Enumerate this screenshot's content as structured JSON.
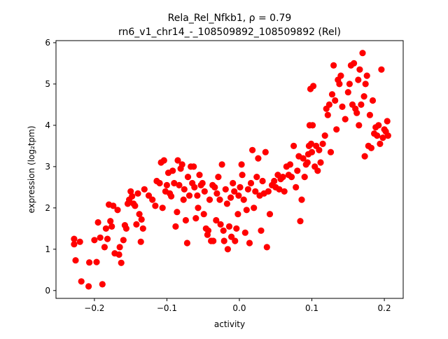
{
  "chart_data": {
    "type": "scatter",
    "title_line1": "Rela_Rel_Nfkb1, ρ = 0.79",
    "title_line2": "rn6_v1_chr14_-_108509892_108509892 (Rel)",
    "xlabel": "activity",
    "ylabel": "expression (log₂tpm)",
    "xlim": [
      -0.253,
      0.226
    ],
    "ylim": [
      -0.19,
      6.05
    ],
    "xticks": [
      -0.2,
      -0.1,
      0.0,
      0.1,
      0.2
    ],
    "xtick_labels": [
      "−0.2",
      "−0.1",
      "0.0",
      "0.1",
      "0.2"
    ],
    "yticks": [
      0,
      1,
      2,
      3,
      4,
      5,
      6
    ],
    "ytick_labels": [
      "0",
      "1",
      "2",
      "3",
      "4",
      "5",
      "6"
    ],
    "grid": false,
    "legend": "none",
    "marker_color": "#ff0000",
    "points": [
      [
        -0.228,
        1.25
      ],
      [
        -0.228,
        1.12
      ],
      [
        -0.226,
        0.73
      ],
      [
        -0.22,
        1.18
      ],
      [
        -0.218,
        0.22
      ],
      [
        -0.208,
        0.1
      ],
      [
        -0.207,
        0.68
      ],
      [
        -0.2,
        1.22
      ],
      [
        -0.197,
        0.69
      ],
      [
        -0.195,
        1.65
      ],
      [
        -0.192,
        1.28
      ],
      [
        -0.189,
        0.15
      ],
      [
        -0.186,
        1.05
      ],
      [
        -0.184,
        1.5
      ],
      [
        -0.182,
        1.25
      ],
      [
        -0.18,
        2.08
      ],
      [
        -0.178,
        1.68
      ],
      [
        -0.176,
        1.55
      ],
      [
        -0.174,
        2.05
      ],
      [
        -0.172,
        0.9
      ],
      [
        -0.168,
        1.95
      ],
      [
        -0.166,
        0.87
      ],
      [
        -0.165,
        1.05
      ],
      [
        -0.163,
        0.67
      ],
      [
        -0.16,
        1.22
      ],
      [
        -0.158,
        1.58
      ],
      [
        -0.156,
        1.5
      ],
      [
        -0.154,
        2.1
      ],
      [
        -0.152,
        2.2
      ],
      [
        -0.15,
        2.4
      ],
      [
        -0.148,
        2.28
      ],
      [
        -0.146,
        2.1
      ],
      [
        -0.144,
        2.05
      ],
      [
        -0.142,
        1.6
      ],
      [
        -0.14,
        2.35
      ],
      [
        -0.138,
        1.85
      ],
      [
        -0.136,
        1.18
      ],
      [
        -0.135,
        1.72
      ],
      [
        -0.133,
        1.5
      ],
      [
        -0.131,
        2.45
      ],
      [
        -0.125,
        2.3
      ],
      [
        -0.12,
        2.2
      ],
      [
        -0.116,
        2.05
      ],
      [
        -0.114,
        2.65
      ],
      [
        -0.11,
        2.6
      ],
      [
        -0.108,
        3.1
      ],
      [
        -0.106,
        2.0
      ],
      [
        -0.104,
        3.15
      ],
      [
        -0.102,
        2.4
      ],
      [
        -0.1,
        2.55
      ],
      [
        -0.098,
        2.85
      ],
      [
        -0.096,
        2.35
      ],
      [
        -0.094,
        2.28
      ],
      [
        -0.092,
        2.9
      ],
      [
        -0.09,
        2.6
      ],
      [
        -0.088,
        1.55
      ],
      [
        -0.086,
        1.9
      ],
      [
        -0.085,
        3.15
      ],
      [
        -0.083,
        2.55
      ],
      [
        -0.081,
        2.95
      ],
      [
        -0.079,
        3.05
      ],
      [
        -0.077,
        2.2
      ],
      [
        -0.076,
        2.45
      ],
      [
        -0.074,
        1.7
      ],
      [
        -0.072,
        1.15
      ],
      [
        -0.071,
        2.75
      ],
      [
        -0.069,
        2.3
      ],
      [
        -0.067,
        3.0
      ],
      [
        -0.065,
        2.6
      ],
      [
        -0.063,
        3.0
      ],
      [
        -0.062,
        2.5
      ],
      [
        -0.06,
        1.75
      ],
      [
        -0.058,
        2.3
      ],
      [
        -0.057,
        2.0
      ],
      [
        -0.055,
        2.8
      ],
      [
        -0.053,
        2.55
      ],
      [
        -0.051,
        2.6
      ],
      [
        -0.049,
        1.85
      ],
      [
        -0.048,
        2.4
      ],
      [
        -0.046,
        1.5
      ],
      [
        -0.044,
        1.35
      ],
      [
        -0.043,
        1.45
      ],
      [
        -0.041,
        2.2
      ],
      [
        -0.039,
        1.2
      ],
      [
        -0.037,
        2.55
      ],
      [
        -0.036,
        1.2
      ],
      [
        -0.034,
        2.5
      ],
      [
        -0.032,
        1.7
      ],
      [
        -0.031,
        2.35
      ],
      [
        -0.029,
        2.75
      ],
      [
        -0.027,
        2.2
      ],
      [
        -0.026,
        1.6
      ],
      [
        -0.024,
        3.05
      ],
      [
        -0.022,
        1.45
      ],
      [
        -0.021,
        1.2
      ],
      [
        -0.019,
        2.45
      ],
      [
        -0.017,
        2.1
      ],
      [
        -0.016,
        1.0
      ],
      [
        -0.014,
        1.55
      ],
      [
        -0.012,
        2.25
      ],
      [
        -0.011,
        1.3
      ],
      [
        -0.009,
        2.6
      ],
      [
        -0.007,
        2.4
      ],
      [
        -0.006,
        1.2
      ],
      [
        -0.004,
        1.5
      ],
      [
        -0.002,
        1.85
      ],
      [
        -0.001,
        2.3
      ],
      [
        0.001,
        2.5
      ],
      [
        0.003,
        3.05
      ],
      [
        0.004,
        2.8
      ],
      [
        0.006,
        2.2
      ],
      [
        0.008,
        1.4
      ],
      [
        0.01,
        1.95
      ],
      [
        0.012,
        2.45
      ],
      [
        0.014,
        1.15
      ],
      [
        0.016,
        2.6
      ],
      [
        0.018,
        3.4
      ],
      [
        0.02,
        2.0
      ],
      [
        0.022,
        2.4
      ],
      [
        0.024,
        2.75
      ],
      [
        0.026,
        3.2
      ],
      [
        0.028,
        2.3
      ],
      [
        0.03,
        1.45
      ],
      [
        0.032,
        2.65
      ],
      [
        0.034,
        2.35
      ],
      [
        0.036,
        3.35
      ],
      [
        0.038,
        1.05
      ],
      [
        0.04,
        2.4
      ],
      [
        0.042,
        1.85
      ],
      [
        0.045,
        2.55
      ],
      [
        0.048,
        2.65
      ],
      [
        0.05,
        2.5
      ],
      [
        0.053,
        2.8
      ],
      [
        0.055,
        2.45
      ],
      [
        0.057,
        2.7
      ],
      [
        0.06,
        2.75
      ],
      [
        0.062,
        2.4
      ],
      [
        0.065,
        3.0
      ],
      [
        0.068,
        2.8
      ],
      [
        0.07,
        3.05
      ],
      [
        0.072,
        2.75
      ],
      [
        0.075,
        3.5
      ],
      [
        0.078,
        2.5
      ],
      [
        0.08,
        2.9
      ],
      [
        0.082,
        3.25
      ],
      [
        0.084,
        1.68
      ],
      [
        0.086,
        2.2
      ],
      [
        0.088,
        3.2
      ],
      [
        0.09,
        2.75
      ],
      [
        0.092,
        3.05
      ],
      [
        0.094,
        3.1
      ],
      [
        0.095,
        3.3
      ],
      [
        0.096,
        3.5
      ],
      [
        0.097,
        4.0
      ],
      [
        0.098,
        4.88
      ],
      [
        0.099,
        3.55
      ],
      [
        0.1,
        3.35
      ],
      [
        0.101,
        4.0
      ],
      [
        0.102,
        4.95
      ],
      [
        0.104,
        3.0
      ],
      [
        0.106,
        3.5
      ],
      [
        0.108,
        2.9
      ],
      [
        0.11,
        3.4
      ],
      [
        0.112,
        3.1
      ],
      [
        0.115,
        3.55
      ],
      [
        0.118,
        3.75
      ],
      [
        0.12,
        4.4
      ],
      [
        0.122,
        4.25
      ],
      [
        0.124,
        4.5
      ],
      [
        0.126,
        3.35
      ],
      [
        0.128,
        4.75
      ],
      [
        0.13,
        5.45
      ],
      [
        0.132,
        4.6
      ],
      [
        0.134,
        3.9
      ],
      [
        0.136,
        5.1
      ],
      [
        0.138,
        5.0
      ],
      [
        0.14,
        5.2
      ],
      [
        0.142,
        4.45
      ],
      [
        0.146,
        4.15
      ],
      [
        0.15,
        4.8
      ],
      [
        0.152,
        5.0
      ],
      [
        0.154,
        5.45
      ],
      [
        0.156,
        4.5
      ],
      [
        0.158,
        5.5
      ],
      [
        0.16,
        4.4
      ],
      [
        0.162,
        4.3
      ],
      [
        0.164,
        5.1
      ],
      [
        0.165,
        4.0
      ],
      [
        0.166,
        5.35
      ],
      [
        0.168,
        4.5
      ],
      [
        0.17,
        5.75
      ],
      [
        0.172,
        4.7
      ],
      [
        0.173,
        3.25
      ],
      [
        0.174,
        5.0
      ],
      [
        0.176,
        5.2
      ],
      [
        0.178,
        3.5
      ],
      [
        0.18,
        4.25
      ],
      [
        0.182,
        3.45
      ],
      [
        0.184,
        4.6
      ],
      [
        0.186,
        3.8
      ],
      [
        0.188,
        3.95
      ],
      [
        0.19,
        3.75
      ],
      [
        0.192,
        4.0
      ],
      [
        0.194,
        3.55
      ],
      [
        0.196,
        5.35
      ],
      [
        0.198,
        3.7
      ],
      [
        0.2,
        3.9
      ],
      [
        0.202,
        3.85
      ],
      [
        0.204,
        4.1
      ],
      [
        0.205,
        3.75
      ]
    ]
  }
}
